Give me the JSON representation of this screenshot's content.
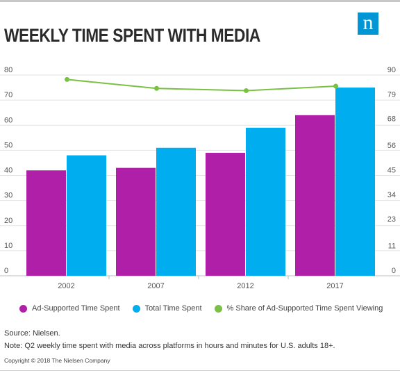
{
  "header": {
    "title": "WEEKLY TIME SPENT WITH MEDIA",
    "logo_text": "n"
  },
  "chart_data": {
    "type": "bar",
    "title": "WEEKLY TIME SPENT WITH MEDIA",
    "categories": [
      "2002",
      "2007",
      "2012",
      "2017"
    ],
    "series": [
      {
        "name": "Ad-Supported Time Spent",
        "type": "bar",
        "axis": "left",
        "color": "#b01fa8",
        "values": [
          42,
          43,
          49,
          64
        ]
      },
      {
        "name": "Total Time Spent",
        "type": "bar",
        "axis": "left",
        "color": "#00aeef",
        "values": [
          48,
          51,
          59,
          75
        ]
      },
      {
        "name": "% Share of Ad-Supported Time Spent Viewing",
        "type": "line",
        "axis": "right",
        "color": "#7ac143",
        "values": [
          88,
          84,
          83,
          85
        ]
      }
    ],
    "y_left": {
      "ticks": [
        0,
        10,
        20,
        30,
        40,
        50,
        60,
        70,
        80
      ],
      "ylim": [
        0,
        80
      ]
    },
    "y_right": {
      "ticks": [
        0,
        11,
        23,
        34,
        45,
        56,
        68,
        79,
        90
      ],
      "ylim": [
        0,
        90
      ]
    },
    "grid": true,
    "legend_position": "bottom"
  },
  "footer": {
    "source": "Source: Nielsen.",
    "note": "Note: Q2 weekly time spent with media across platforms in hours and minutes for U.S. adults 18+.",
    "copyright": "Copyright © 2018 The Nielsen Company"
  }
}
